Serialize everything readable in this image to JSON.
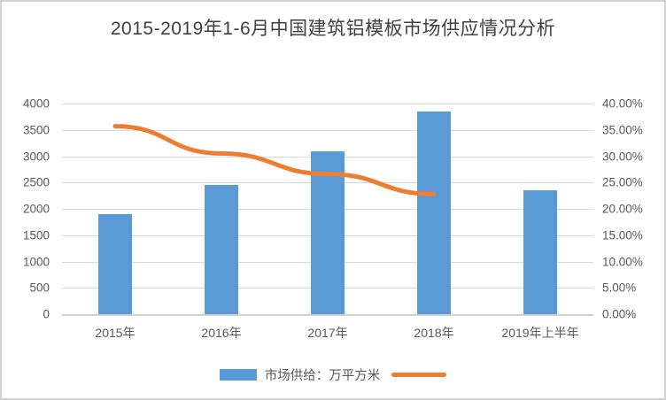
{
  "frame": {
    "border_color": "#d2d2d2",
    "background": "#ffffff"
  },
  "chart_data": {
    "type": "bar",
    "title": "2015-2019年1-6月中国建筑铝模板市场供应情况分析",
    "categories": [
      "2015年",
      "2016年",
      "2017年",
      "2018年",
      "2019年上半年"
    ],
    "series": [
      {
        "name": "市场供给：万平方米",
        "type": "bar",
        "axis": "left",
        "color": "#5b9bd5",
        "values": [
          1900,
          2450,
          3100,
          3850,
          2350
        ]
      },
      {
        "name": "",
        "type": "line",
        "axis": "right",
        "color": "#ed7d31",
        "values": [
          35.7,
          30.5,
          26.6,
          22.8,
          null
        ]
      }
    ],
    "left_axis": {
      "min": 0,
      "max": 4000,
      "step": 500,
      "ticks_top_to_bottom": [
        "4000",
        "3500",
        "3000",
        "2500",
        "2000",
        "1500",
        "1000",
        "500",
        "0"
      ]
    },
    "right_axis": {
      "min": 0,
      "max": 40,
      "step": 5,
      "ticks_top_to_bottom": [
        "40.00%",
        "35.00%",
        "30.00%",
        "25.00%",
        "20.00%",
        "15.00%",
        "10.00%",
        "5.00%",
        "0.00%"
      ]
    },
    "grid": true,
    "gridline_color": "#d9d9d9",
    "legend_position": "bottom",
    "text_color": "#595959",
    "title_color": "#404040"
  },
  "legend": {
    "bar_label": "市场供给：万平方米",
    "line_label": ""
  }
}
